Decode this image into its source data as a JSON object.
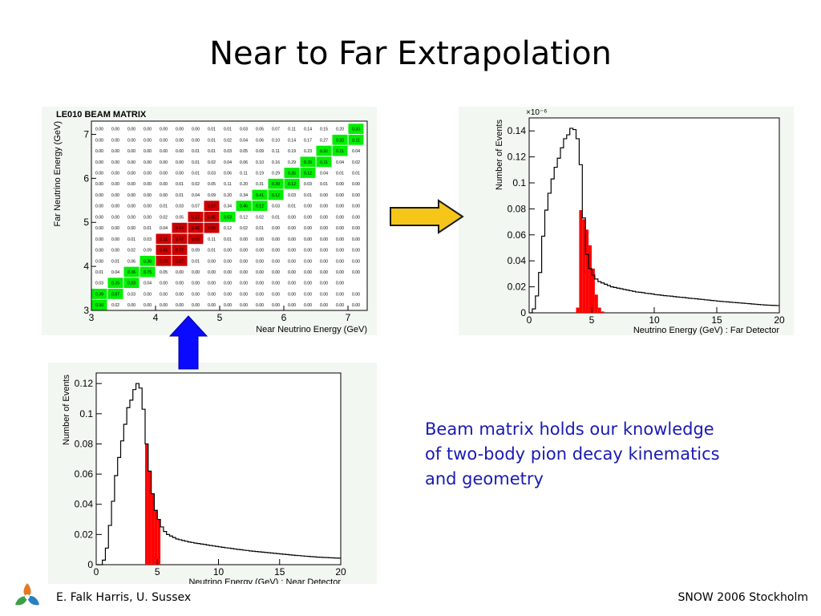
{
  "slide": {
    "title": "Near to Far Extrapolation",
    "caption_lines": [
      "Beam matrix holds our knowledge",
      "of two-body pion decay kinematics",
      "and geometry"
    ],
    "footer_left": "E. Falk Harris, U. Sussex",
    "footer_right": "SNOW 2006 Stockholm"
  },
  "colors": {
    "caption": "#1a1ab4",
    "right_arrow_fill": "#f5c518",
    "up_arrow_fill": "#0a0aff",
    "highlight": "#ff0000",
    "matrix_high": "#00ee00",
    "matrix_mid": "#cc0000",
    "histogram_line": "#000000"
  },
  "icons": {
    "logo": "snow-logo-icon",
    "right_arrow": "arrow-right-icon",
    "up_arrow": "arrow-up-icon"
  },
  "chart_data": [
    {
      "type": "heatmap",
      "title": "LE010 BEAM MATRIX",
      "xlabel": "Near Neutrino Energy (GeV)",
      "ylabel": "Far Neutrino Energy (GeV)",
      "xlim": [
        3,
        7.3
      ],
      "ylim": [
        3,
        7.3
      ],
      "x_ticks": [
        "3",
        "4",
        "5",
        "6",
        "7"
      ],
      "y_ticks": [
        "3",
        "4",
        "5",
        "6",
        "7"
      ],
      "rows": [
        [
          "0.00",
          "0.00",
          "0.00",
          "0.00",
          "0.00",
          "0.00",
          "0.00",
          "0.01",
          "0.01",
          "0.03",
          "0.05",
          "0.07",
          "0.11",
          "0.14",
          "0.15",
          "0.20",
          "0.30"
        ],
        [
          "0.00",
          "0.00",
          "0.00",
          "0.00",
          "0.00",
          "0.00",
          "0.00",
          "0.01",
          "0.02",
          "0.04",
          "0.06",
          "0.10",
          "0.14",
          "0.17",
          "0.27",
          "0.32",
          "0.11"
        ],
        [
          "0.00",
          "0.00",
          "0.00",
          "0.00",
          "0.00",
          "0.00",
          "0.01",
          "0.01",
          "0.03",
          "0.05",
          "0.09",
          "0.11",
          "0.19",
          "0.23",
          "0.32",
          "0.11",
          "0.04"
        ],
        [
          "0.00",
          "0.00",
          "0.00",
          "0.00",
          "0.00",
          "0.00",
          "0.01",
          "0.02",
          "0.04",
          "0.06",
          "0.10",
          "0.16",
          "0.29",
          "0.35",
          "0.11",
          "0.04",
          "0.02"
        ],
        [
          "0.00",
          "0.00",
          "0.00",
          "0.00",
          "0.00",
          "0.00",
          "0.01",
          "0.03",
          "0.06",
          "0.11",
          "0.19",
          "0.29",
          "0.35",
          "0.12",
          "0.04",
          "0.01",
          "0.01"
        ],
        [
          "0.00",
          "0.00",
          "0.00",
          "0.00",
          "0.00",
          "0.01",
          "0.02",
          "0.05",
          "0.11",
          "0.20",
          "0.31",
          "0.39",
          "0.12",
          "0.03",
          "0.01",
          "0.00",
          "0.00"
        ],
        [
          "0.00",
          "0.00",
          "0.00",
          "0.00",
          "0.00",
          "0.01",
          "0.04",
          "0.09",
          "0.20",
          "0.34",
          "0.41",
          "0.12",
          "0.03",
          "0.01",
          "0.00",
          "0.00",
          "0.00"
        ],
        [
          "0.00",
          "0.00",
          "0.00",
          "0.00",
          "0.01",
          "0.03",
          "0.07",
          "0.19",
          "0.34",
          "0.46",
          "0.12",
          "0.03",
          "0.01",
          "0.00",
          "0.00",
          "0.00",
          "0.00"
        ],
        [
          "0.00",
          "0.00",
          "0.00",
          "0.00",
          "0.02",
          "0.05",
          "0.17",
          "0.35",
          "0.53",
          "0.12",
          "0.02",
          "0.01",
          "0.00",
          "0.00",
          "0.00",
          "0.00",
          "0.00"
        ],
        [
          "0.00",
          "0.00",
          "0.00",
          "0.01",
          "0.04",
          "0.14",
          "0.42",
          "0.55",
          "0.12",
          "0.02",
          "0.01",
          "0.00",
          "0.00",
          "0.00",
          "0.00",
          "0.00",
          "0.00"
        ],
        [
          "0.00",
          "0.00",
          "0.01",
          "0.03",
          "0.11",
          "0.42",
          "0.66",
          "0.11",
          "0.01",
          "0.00",
          "0.00",
          "0.00",
          "0.00",
          "0.00",
          "0.00",
          "0.00",
          "0.00"
        ],
        [
          "0.00",
          "0.00",
          "0.02",
          "0.09",
          "0.42",
          "0.72",
          "0.09",
          "0.01",
          "0.00",
          "0.00",
          "0.00",
          "0.00",
          "0.00",
          "0.00",
          "0.00",
          "0.00",
          "0.00"
        ],
        [
          "0.00",
          "0.01",
          "0.06",
          "0.36",
          "0.70",
          "0.07",
          "0.01",
          "0.00",
          "0.00",
          "0.00",
          "0.00",
          "0.00",
          "0.00",
          "0.00",
          "0.00",
          "0.00",
          "0.00"
        ],
        [
          "0.01",
          "0.04",
          "0.36",
          "0.75",
          "0.05",
          "0.00",
          "0.00",
          "0.00",
          "0.00",
          "0.00",
          "0.00",
          "0.00",
          "0.00",
          "0.00",
          "0.00",
          "0.00",
          "0.00"
        ],
        [
          "0.03",
          "0.35",
          "0.83",
          "0.04",
          "0.00",
          "0.00",
          "0.00",
          "0.00",
          "0.00",
          "0.00",
          "0.00",
          "0.00",
          "0.00",
          "0.00",
          "0.00",
          "0.00",
          ""
        ],
        [
          "0.39",
          "0.87",
          "0.03",
          "0.00",
          "0.00",
          "0.00",
          "0.00",
          "0.00",
          "0.00",
          "0.00",
          "0.00",
          "0.00",
          "0.00",
          "0.00",
          "0.00",
          "0.00",
          "0.00"
        ],
        [
          "0.90",
          "0.02",
          "0.00",
          "0.00",
          "0.00",
          "0.00",
          "0.00",
          "0.00",
          "0.00",
          "0.00",
          "0.00",
          "0.00",
          "0.00",
          "0.00",
          "0.00",
          "0.00",
          "0.00"
        ]
      ],
      "row_high_cells": [
        [
          16
        ],
        [
          15,
          16
        ],
        [
          14,
          15
        ],
        [
          13,
          14
        ],
        [
          12,
          13
        ],
        [
          11,
          12
        ],
        [
          10,
          11
        ],
        [
          9,
          10
        ],
        [
          8
        ],
        [],
        [],
        [],
        [
          3
        ],
        [
          2,
          3
        ],
        [
          1,
          2
        ],
        [
          0,
          1
        ],
        [
          0
        ]
      ],
      "row_mid_cells": [
        [],
        [],
        [],
        [],
        [],
        [],
        [],
        [
          7
        ],
        [
          6,
          7
        ],
        [
          5,
          6,
          7
        ],
        [
          4,
          5,
          6
        ],
        [
          4,
          5
        ],
        [
          4,
          5
        ],
        [],
        [],
        [],
        []
      ]
    },
    {
      "type": "bar",
      "xlabel": "Neutrino Energy (GeV) : Far  Detector",
      "ylabel": "Number of Events",
      "y_scale_label": "×10⁻⁶",
      "xlim": [
        0,
        20
      ],
      "ylim": [
        0,
        0.15
      ],
      "x_ticks": [
        "0",
        "5",
        "10",
        "15",
        "20"
      ],
      "y_ticks": [
        "0",
        "0.02",
        "0.04",
        "0.06",
        "0.08",
        "0.1",
        "0.12",
        "0.14"
      ],
      "bin_width": 0.25,
      "series": [
        {
          "values": [
            0,
            0.003,
            0.013,
            0.031,
            0.059,
            0.079,
            0.092,
            0.103,
            0.112,
            0.119,
            0.127,
            0.134,
            0.137,
            0.142,
            0.141,
            0.134,
            0.114,
            0.073,
            0.045,
            0.034,
            0.029,
            0.026,
            0.024,
            0.023,
            0.022,
            0.021,
            0.02,
            0.0195,
            0.019,
            0.0185,
            0.018,
            0.0175,
            0.017,
            0.0165,
            0.016,
            0.0158,
            0.0155,
            0.015,
            0.0148,
            0.0145,
            0.014,
            0.0138,
            0.0135,
            0.0132,
            0.013,
            0.0128,
            0.0125,
            0.0122,
            0.012,
            0.0118,
            0.0115,
            0.0112,
            0.011,
            0.0108,
            0.0105,
            0.0103,
            0.01,
            0.0098,
            0.0095,
            0.0093,
            0.009,
            0.0088,
            0.0086,
            0.0084,
            0.0082,
            0.008,
            0.0078,
            0.0076,
            0.0074,
            0.0072,
            0.007,
            0.0068,
            0.0066,
            0.0064,
            0.0062,
            0.006,
            0.0059,
            0.0058,
            0.0057,
            0.0056
          ]
        },
        {
          "values": [
            0,
            0,
            0,
            0,
            0,
            0,
            0,
            0,
            0,
            0,
            0,
            0,
            0,
            0,
            0,
            0.004,
            0.079,
            0.072,
            0.064,
            0.052,
            0.034,
            0.014,
            0.004,
            0.001,
            0,
            0,
            0,
            0,
            0,
            0,
            0,
            0,
            0,
            0,
            0,
            0,
            0,
            0,
            0,
            0,
            0,
            0,
            0,
            0,
            0,
            0,
            0,
            0,
            0,
            0,
            0,
            0,
            0,
            0,
            0,
            0,
            0,
            0,
            0,
            0,
            0,
            0,
            0,
            0,
            0,
            0,
            0,
            0,
            0,
            0,
            0,
            0,
            0,
            0,
            0,
            0,
            0,
            0,
            0,
            0
          ]
        }
      ]
    },
    {
      "type": "bar",
      "xlabel": "Neutrino Energy (GeV) : Near Detector",
      "ylabel": "Number of Events",
      "xlim": [
        0,
        20
      ],
      "ylim": [
        0,
        0.127
      ],
      "x_ticks": [
        "0",
        "5",
        "10",
        "15",
        "20"
      ],
      "y_ticks": [
        "0",
        "0.02",
        "0.04",
        "0.06",
        "0.08",
        "0.1",
        "0.12"
      ],
      "bin_width": 0.25,
      "series": [
        {
          "values": [
            0,
            0.0,
            0.003,
            0.011,
            0.026,
            0.042,
            0.059,
            0.071,
            0.082,
            0.093,
            0.104,
            0.109,
            0.116,
            0.12,
            0.117,
            0.103,
            0.08,
            0.062,
            0.047,
            0.036,
            0.03,
            0.025,
            0.022,
            0.02,
            0.019,
            0.018,
            0.017,
            0.0165,
            0.016,
            0.0155,
            0.015,
            0.0147,
            0.0143,
            0.014,
            0.0137,
            0.0134,
            0.013,
            0.0127,
            0.0124,
            0.0121,
            0.0118,
            0.0115,
            0.0112,
            0.011,
            0.0107,
            0.0104,
            0.0101,
            0.0099,
            0.0096,
            0.0094,
            0.0091,
            0.0089,
            0.0087,
            0.0085,
            0.0083,
            0.0081,
            0.0079,
            0.0077,
            0.0075,
            0.0073,
            0.0071,
            0.0069,
            0.0067,
            0.0065,
            0.0063,
            0.0061,
            0.006,
            0.0058,
            0.0056,
            0.0055,
            0.0053,
            0.0052,
            0.005,
            0.0049,
            0.0048,
            0.0047,
            0.0046,
            0.0045,
            0.0044,
            0.0043
          ]
        },
        {
          "values": [
            0,
            0,
            0,
            0,
            0,
            0,
            0,
            0,
            0,
            0,
            0,
            0,
            0,
            0,
            0,
            0,
            0.08,
            0.062,
            0.047,
            0.036,
            0.03,
            0,
            0,
            0,
            0,
            0,
            0,
            0,
            0,
            0,
            0,
            0,
            0,
            0,
            0,
            0,
            0,
            0,
            0,
            0,
            0,
            0,
            0,
            0,
            0,
            0,
            0,
            0,
            0,
            0,
            0,
            0,
            0,
            0,
            0,
            0,
            0,
            0,
            0,
            0,
            0,
            0,
            0,
            0,
            0,
            0,
            0,
            0,
            0,
            0,
            0,
            0,
            0,
            0,
            0,
            0,
            0,
            0,
            0,
            0
          ]
        }
      ]
    }
  ]
}
